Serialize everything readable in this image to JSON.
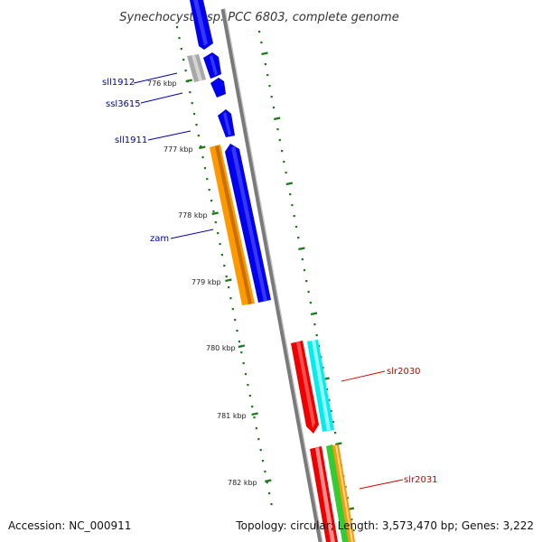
{
  "title": "Synechocystis sp. PCC 6803, complete genome",
  "colors": {
    "ruler": "#1a7a1a",
    "backbone": "#888888",
    "forward_label": "#0000aa",
    "reverse_label": "#cc0000"
  },
  "ruler_ticks": [
    {
      "label": "776 kbp"
    },
    {
      "label": "777 kbp"
    },
    {
      "label": "778 kbp"
    },
    {
      "label": "779 kbp"
    },
    {
      "label": "780 kbp"
    },
    {
      "label": "781 kbp"
    },
    {
      "label": "782 kbp"
    }
  ],
  "genes_forward_labels": {
    "sll1912": "sll1912",
    "ssl3615": "ssl3615",
    "sll1911": "sll1911",
    "zam": "zam"
  },
  "genes_reverse_labels": {
    "slr2030": "slr2030",
    "slr2031": "slr2031"
  },
  "footer": {
    "accession": "Accession: NC_000911",
    "topology": "Topology: circular; Length: 3,573,470 bp; Genes: 3,222"
  }
}
